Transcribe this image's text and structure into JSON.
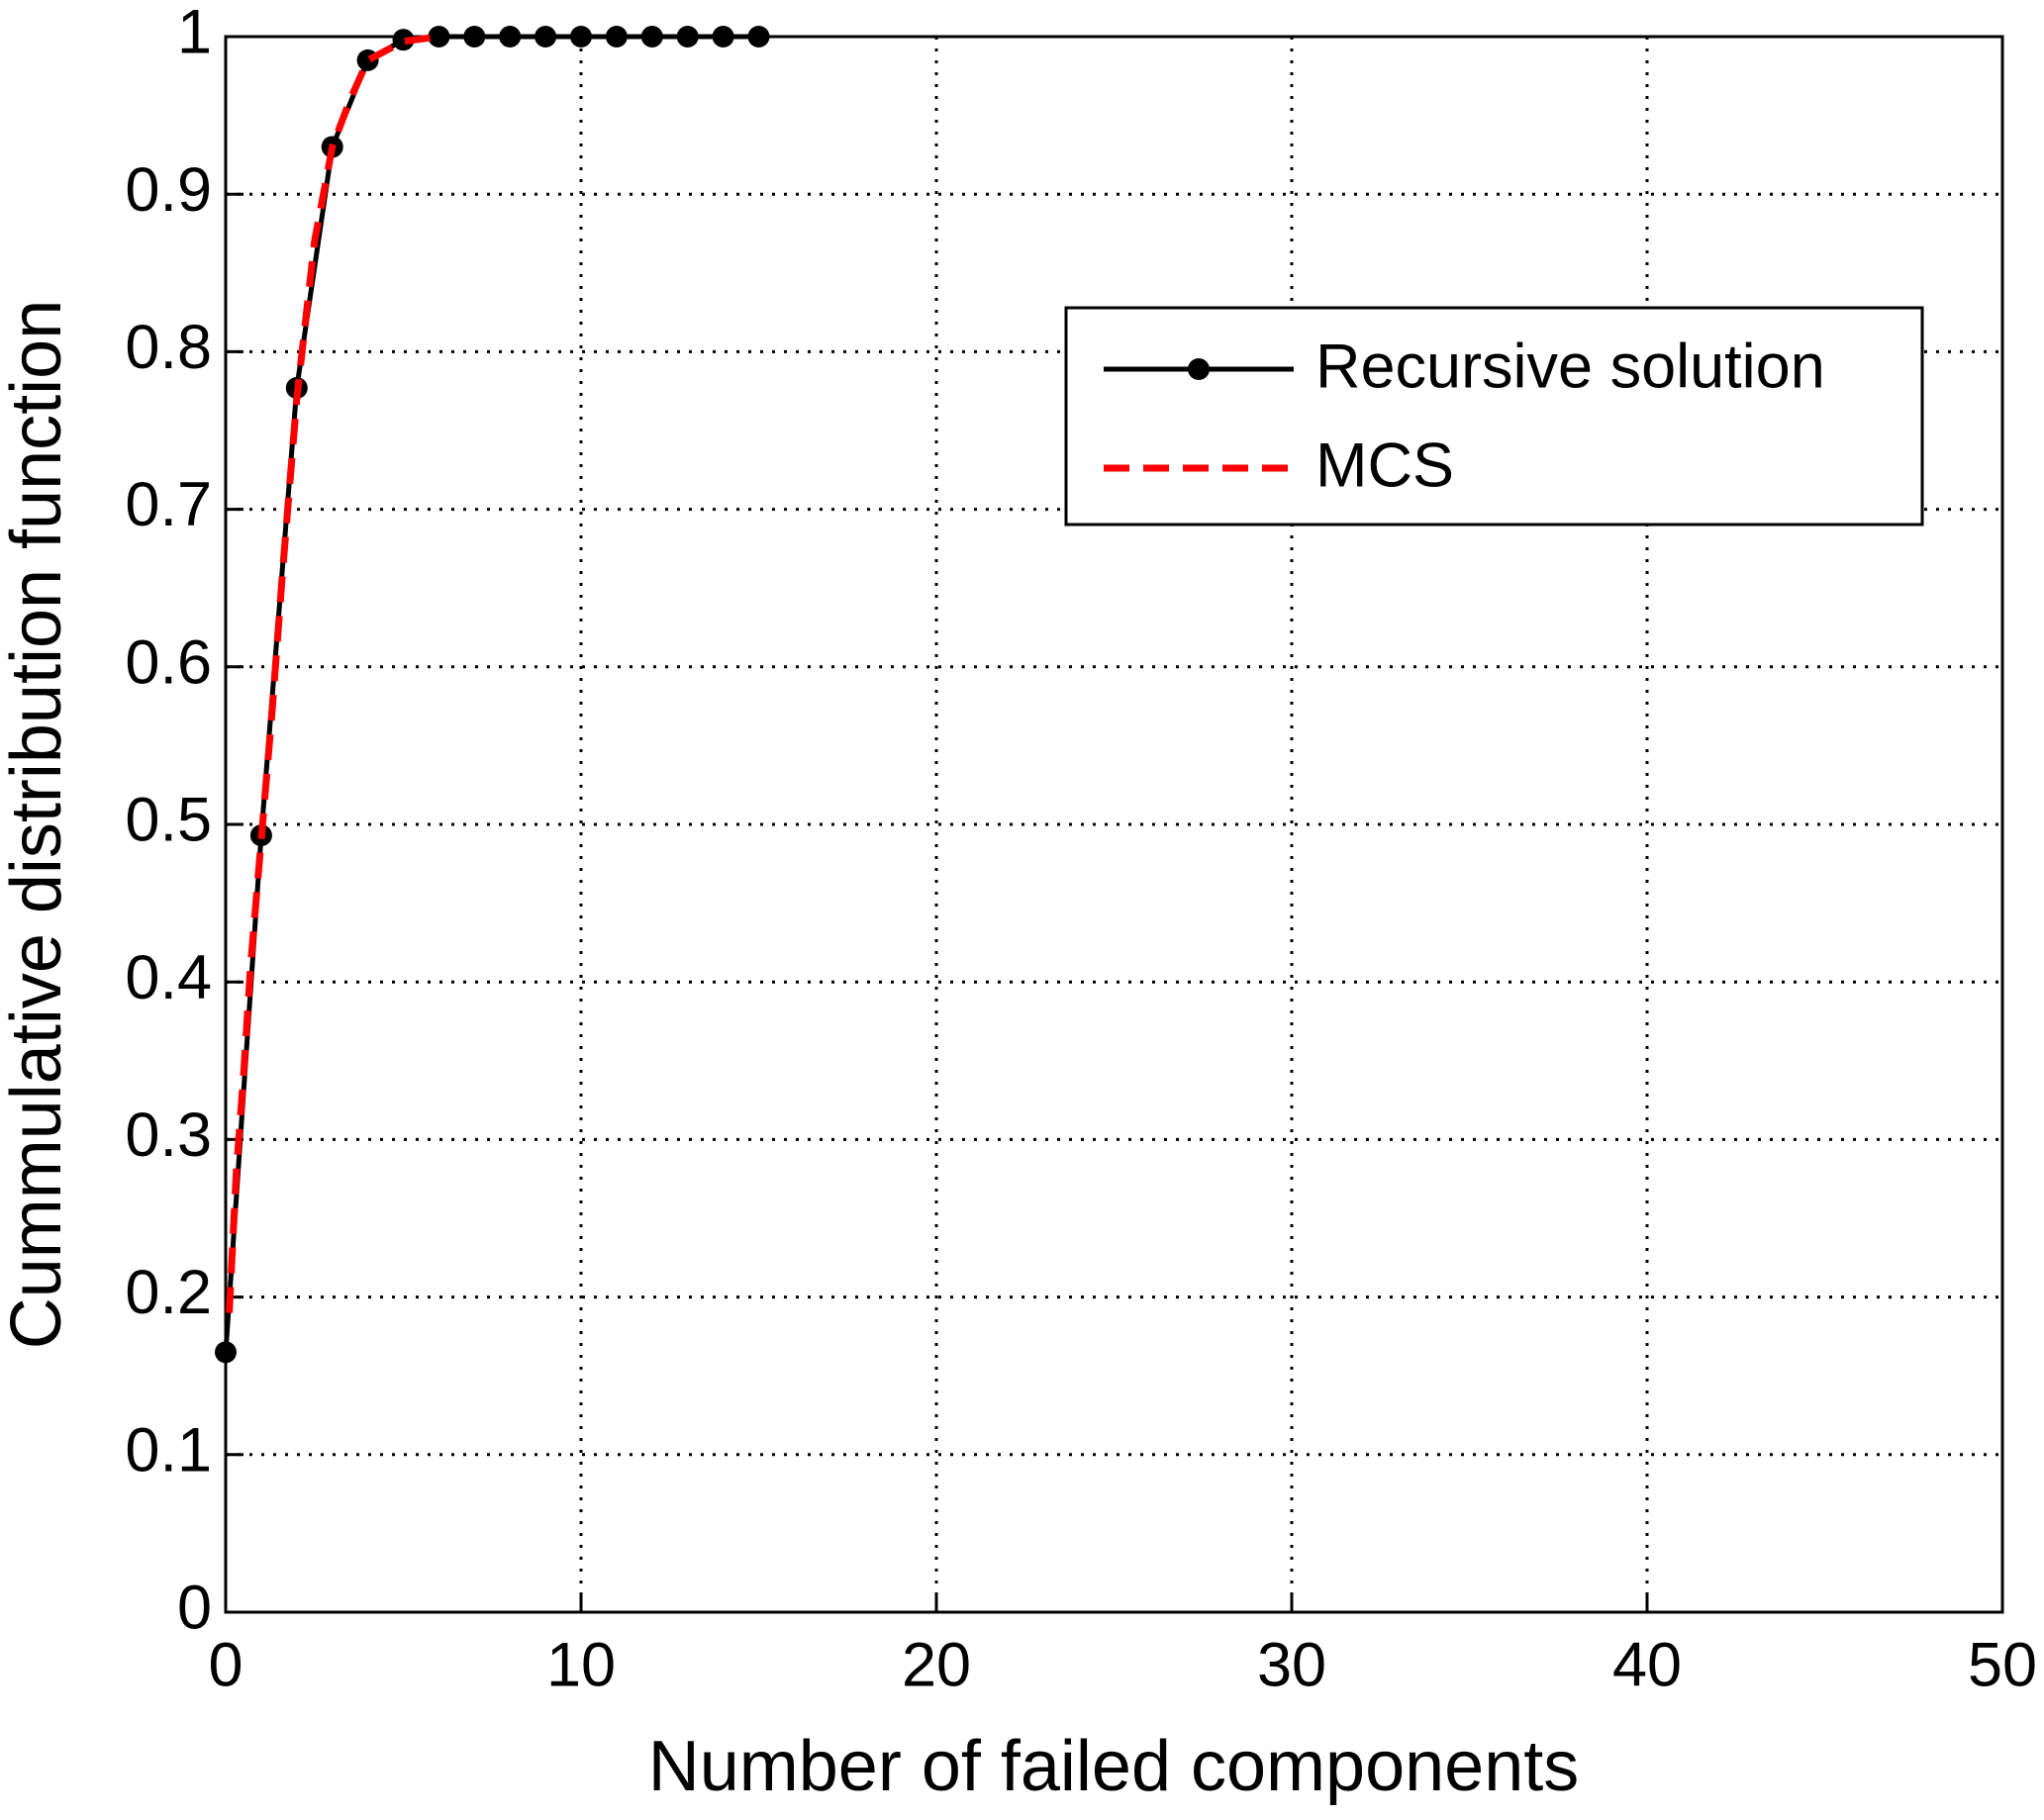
{
  "chart_data": {
    "type": "line",
    "xlabel": "Number of failed components",
    "ylabel": "Cummulative distribution function",
    "xlim": [
      0,
      50
    ],
    "xticks": [
      0,
      10,
      20,
      30,
      40,
      50
    ],
    "ylim": [
      0,
      1
    ],
    "yticks": [
      0,
      0.1,
      0.2,
      0.3,
      0.4,
      0.5,
      0.6,
      0.7,
      0.8,
      0.9,
      1
    ],
    "grid": true,
    "legend": "upper right",
    "series": [
      {
        "name": "Recursive solution",
        "color": "#000000",
        "marker": true,
        "dashed": false,
        "x": [
          0,
          1,
          2,
          3,
          4,
          5,
          6,
          7,
          8,
          9,
          10,
          11,
          12,
          13,
          14,
          15
        ],
        "values": [
          0.165,
          0.493,
          0.777,
          0.93,
          0.985,
          0.998,
          1,
          1,
          1,
          1,
          1,
          1,
          1,
          1,
          1,
          1
        ]
      },
      {
        "name": "MCS",
        "color": "#ff0000",
        "marker": false,
        "dashed": true,
        "x": [
          0.1,
          0.3,
          0.5,
          0.7,
          1,
          1.3,
          1.6,
          2,
          2.5,
          3,
          3.5,
          4,
          5,
          6
        ],
        "values": [
          0.19,
          0.28,
          0.34,
          0.41,
          0.49,
          0.57,
          0.66,
          0.77,
          0.87,
          0.93,
          0.96,
          0.985,
          0.997,
          1
        ]
      }
    ]
  }
}
